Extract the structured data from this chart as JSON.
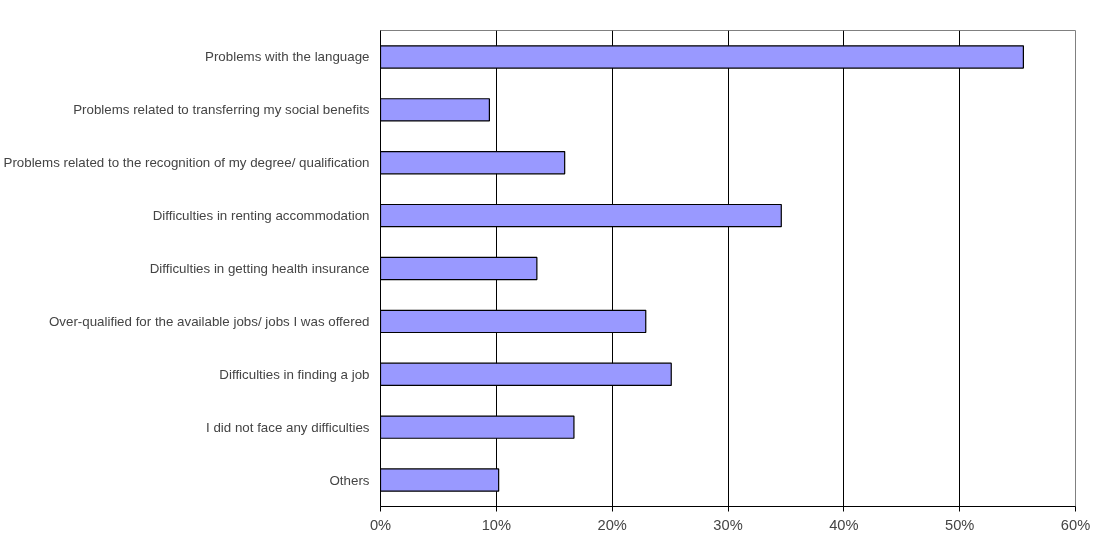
{
  "chart_data": {
    "type": "bar",
    "orientation": "horizontal",
    "categories": [
      "Problems with the language",
      "Problems related to transferring my social benefits",
      "Problems related to the recognition of my degree/ qualification",
      "Difficulties in renting accommodation",
      "Difficulties in getting health insurance",
      "Over-qualified for the available jobs/ jobs I was offered",
      "Difficulties in finding a job",
      "I did not face any difficulties",
      "Others"
    ],
    "values": [
      55.5,
      9.4,
      15.9,
      34.6,
      13.5,
      22.9,
      25.1,
      16.7,
      10.2
    ],
    "color": "#9999ff",
    "xlim": [
      0,
      60
    ],
    "xticks": [
      {
        "value": 0,
        "label": "0%"
      },
      {
        "value": 10,
        "label": "10%"
      },
      {
        "value": 20,
        "label": "20%"
      },
      {
        "value": 30,
        "label": "30%"
      },
      {
        "value": 40,
        "label": "40%"
      },
      {
        "value": 50,
        "label": "50%"
      },
      {
        "value": 60,
        "label": "60%"
      }
    ],
    "grid": "x"
  }
}
